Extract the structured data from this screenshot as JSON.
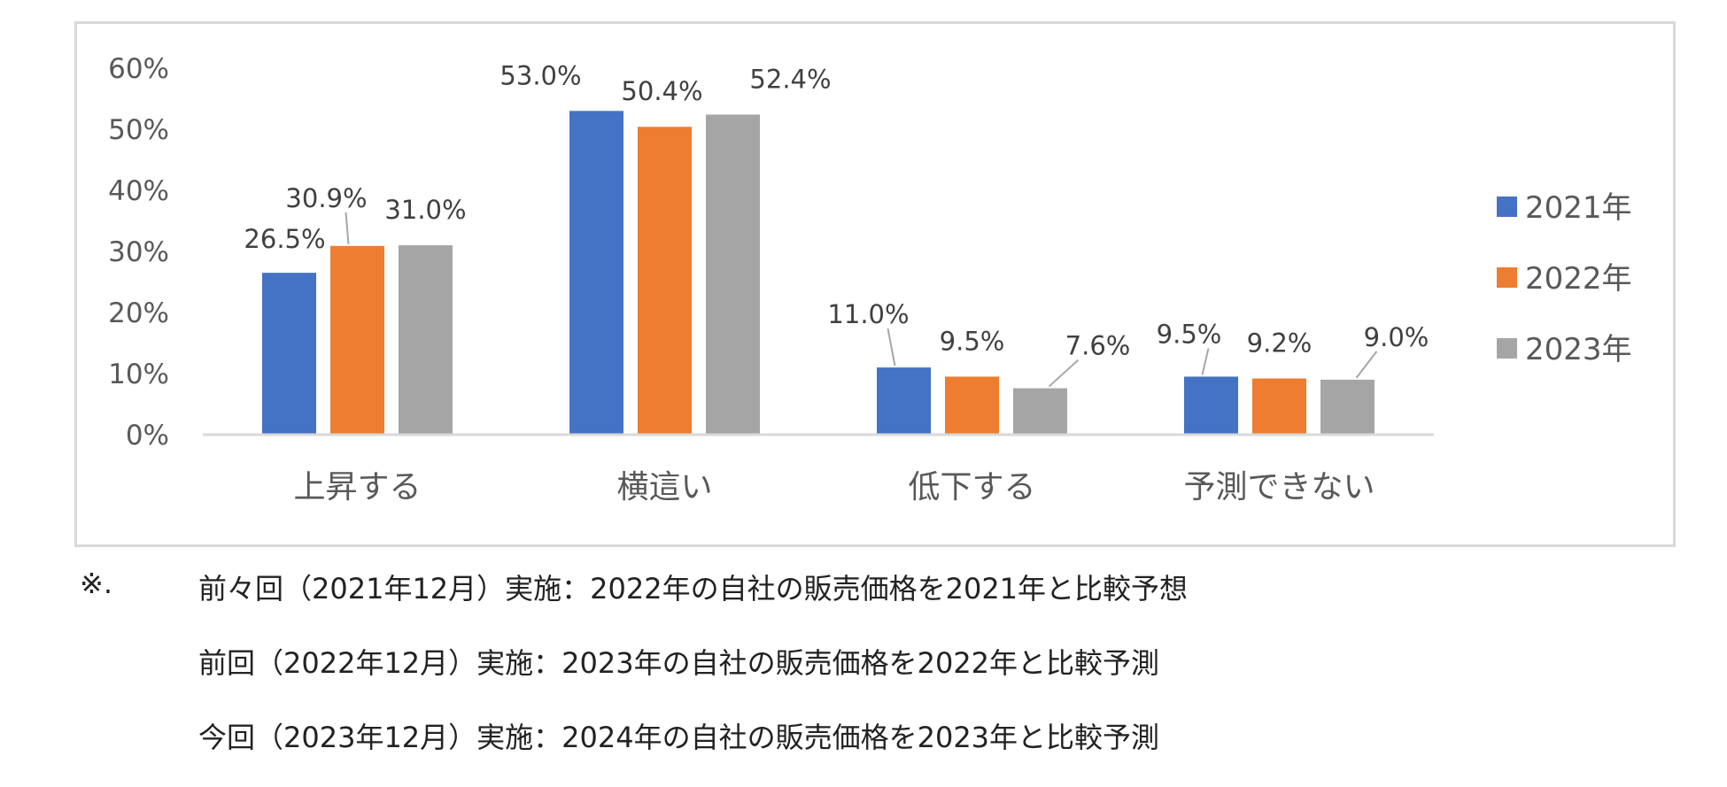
{
  "chart_data": {
    "type": "bar",
    "categories": [
      "上昇する",
      "横這い",
      "低下する",
      "予測できない"
    ],
    "series": [
      {
        "name": "2021年",
        "color": "#4472c4",
        "values": [
          26.5,
          53.0,
          11.0,
          9.5
        ]
      },
      {
        "name": "2022年",
        "color": "#ed7d31",
        "values": [
          30.9,
          50.4,
          9.5,
          9.2
        ]
      },
      {
        "name": "2023年",
        "color": "#a5a5a5",
        "values": [
          31.0,
          52.4,
          7.6,
          9.0
        ]
      }
    ],
    "data_labels": [
      [
        "26.5%",
        "53.0%",
        "11.0%",
        "9.5%"
      ],
      [
        "30.9%",
        "50.4%",
        "9.5%",
        "9.2%"
      ],
      [
        "31.0%",
        "52.4%",
        "7.6%",
        "9.0%"
      ]
    ],
    "yticks": [
      "0%",
      "10%",
      "20%",
      "30%",
      "40%",
      "50%",
      "60%"
    ],
    "ylim": [
      0,
      60
    ],
    "legend_position": "right",
    "grid": false
  },
  "notes": {
    "mark": "※.",
    "lines": [
      "前々回（2021年12月）実施：2022年の自社の販売価格を2021年と比較予想",
      "前回（2022年12月）実施：2023年の自社の販売価格を2022年と比較予測",
      "今回（2023年12月）実施：2024年の自社の販売価格を2023年と比較予測"
    ]
  }
}
